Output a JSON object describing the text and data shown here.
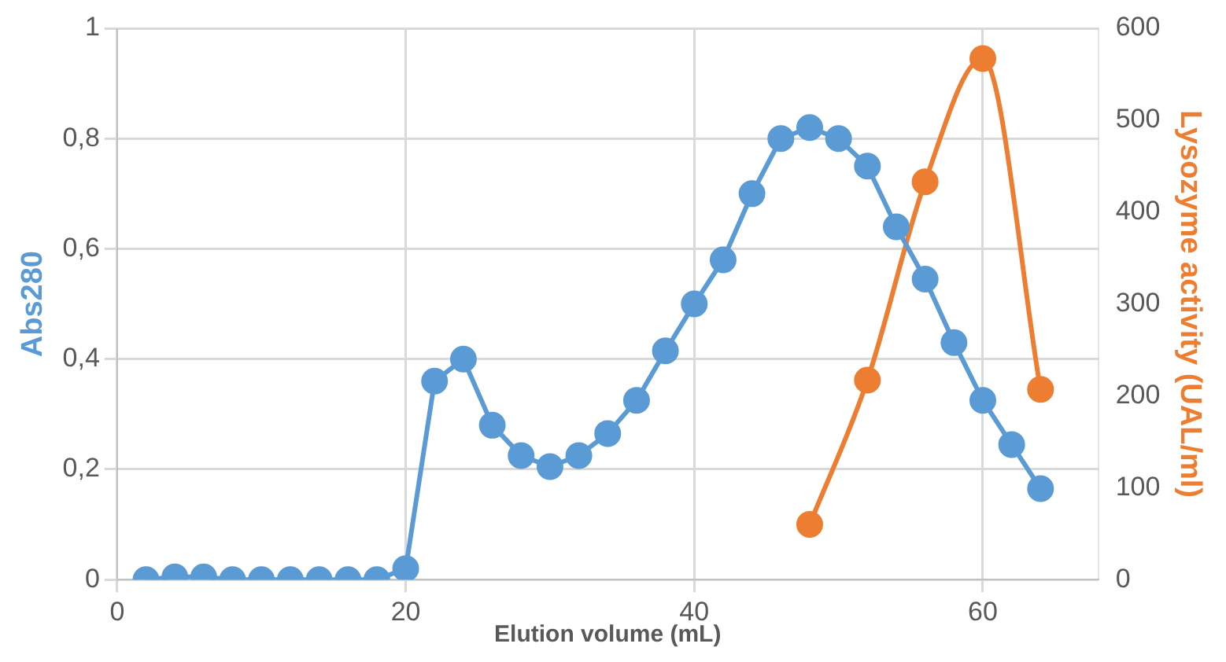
{
  "chart_data": {
    "type": "line",
    "xlabel": "Elution volume (mL)",
    "ylabel": "Abs280",
    "y2label": "Lysozyme activity (UAL/ml)",
    "xlim": [
      0,
      68
    ],
    "xticks": [
      0,
      20,
      40,
      60
    ],
    "ylim": [
      0,
      1
    ],
    "yticks": [
      0,
      {
        "value": 0.2,
        "label": "0,2"
      },
      {
        "value": 0.4,
        "label": "0,4"
      },
      {
        "value": 0.6,
        "label": "0,6"
      },
      {
        "value": 0.8,
        "label": "0,8"
      },
      1
    ],
    "y2lim": [
      0,
      600
    ],
    "y2ticks": [
      0,
      100,
      200,
      300,
      400,
      500,
      600
    ],
    "grid": true,
    "legend": false,
    "marker": "circle",
    "line_style": "solid",
    "series": [
      {
        "color": "#5b9bd5",
        "x": [
          2,
          4,
          6,
          8,
          10,
          12,
          14,
          16,
          18,
          20,
          22,
          24,
          26,
          28,
          30,
          32,
          34,
          36,
          38,
          40,
          42,
          44,
          46,
          48,
          50,
          52,
          54,
          56,
          58,
          60,
          62,
          64
        ],
        "values": [
          0,
          0.005,
          0.005,
          0,
          0,
          0,
          0,
          0,
          0,
          0.02,
          0.36,
          0.4,
          0.28,
          0.225,
          0.205,
          0.225,
          0.265,
          0.325,
          0.415,
          0.5,
          0.58,
          0.7,
          0.8,
          0.82,
          0.8,
          0.75,
          0.64,
          0.545,
          0.43,
          0.325,
          0.245,
          0.165
        ]
      },
      {
        "color": "#ed7d31",
        "axis": "y2",
        "x": [
          48,
          52,
          56,
          60,
          64
        ],
        "values": [
          60,
          217,
          433,
          567,
          207
        ]
      }
    ]
  }
}
